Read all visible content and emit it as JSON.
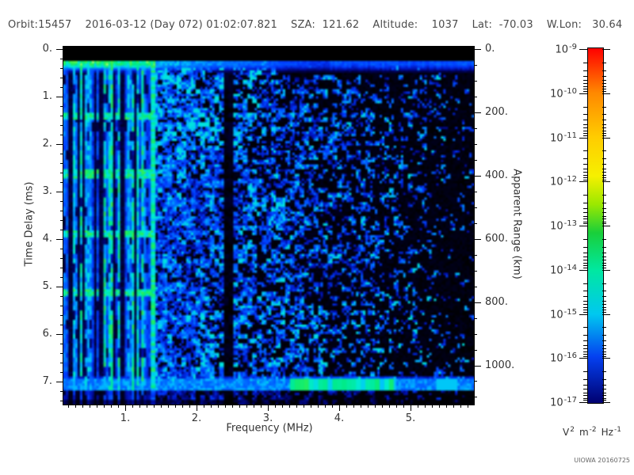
{
  "header": {
    "fields": [
      "Orbit:15457",
      "2016-03-12 (Day 072) 01:02:07.821",
      "SZA:  121.62",
      "Altitude:    1037",
      "Lat:  -70.03",
      "W.Lon:   30.64"
    ]
  },
  "chart_data": {
    "type": "heatmap",
    "title": "",
    "xlabel": "Frequency (MHz)",
    "x_ticks": [
      "1.",
      "2.",
      "3.",
      "4.",
      "5."
    ],
    "x_tick_values": [
      1,
      2,
      3,
      4,
      5
    ],
    "x_range": [
      0.13,
      5.89
    ],
    "x_minor_step": 0.1,
    "ylabel": "Time Delay (ms)",
    "y_ticks": [
      "0.",
      "1.",
      "2.",
      "3.",
      "4.",
      "5.",
      "6.",
      "7."
    ],
    "y_tick_values": [
      0,
      1,
      2,
      3,
      4,
      5,
      6,
      7
    ],
    "y_range": [
      0,
      7.48
    ],
    "y_minor_step": 0.2,
    "y2label": "Apparent Range (km)",
    "y2_ticks": [
      "0.",
      "200.",
      "400.",
      "600.",
      "800.",
      "1000."
    ],
    "y2_tick_values": [
      0,
      200,
      400,
      600,
      800,
      1000
    ],
    "y2_range": [
      0,
      1124
    ],
    "y2_minor_step": 50,
    "colorbar": {
      "scale": "log",
      "tick_exponents": [
        -9,
        -10,
        -11,
        -12,
        -13,
        -14,
        -15,
        -16,
        -17
      ],
      "unit_parts": [
        {
          "base": "V",
          "exp": "2"
        },
        {
          "base": "m",
          "exp": "-2"
        },
        {
          "base": "Hz",
          "exp": "-1"
        }
      ],
      "gradient": [
        [
          0.0,
          "#ff0000"
        ],
        [
          0.125,
          "#ff8800"
        ],
        [
          0.25,
          "#ffcc00"
        ],
        [
          0.36,
          "#f6f000"
        ],
        [
          0.44,
          "#9be800"
        ],
        [
          0.52,
          "#19cf3a"
        ],
        [
          0.625,
          "#00e8a0"
        ],
        [
          0.75,
          "#00c8f0"
        ],
        [
          0.87,
          "#0440f0"
        ],
        [
          1.0,
          "#000070"
        ]
      ]
    },
    "features": [
      "Dense vertical green/cyan plasma-resonance stripes from the low-frequency edge up to about 1.43 MHz, spanning all time delays",
      "Bright horizontal band near 0.3 ms delay: green below ~3.5 MHz fading to blue toward 5.9 MHz",
      "Black (no-signal) strip above ~0.23 ms delay",
      "Diffuse blue speckled echo field from ~1.5 to 5.9 MHz, density and brightness decreasing toward higher frequency",
      "Brighter blue patch between ~1.5 and 2.3 MHz at 0.5-2.5 ms delay",
      "Dark vertical gap near 2.4-2.5 MHz",
      "Bright green vertical line near 1.4 MHz over the full delay range",
      "Horizontal cyan surface-reflection band near 7.05 ms with green blobs between ~3.2 and 4.0 MHz",
      "Faint horizontal harmonic enhancements in the stripe region near 1.4, 2.6, 3.9 and 5.1 ms"
    ],
    "render": {
      "seed": 11,
      "stripe_max_mhz": 1.43,
      "gap_mhz": [
        2.38,
        2.52
      ],
      "top_band_ms": [
        0.27,
        0.45
      ],
      "bottom_band_ms": [
        6.98,
        7.22
      ]
    }
  },
  "credit": "UIOWA 20160725"
}
